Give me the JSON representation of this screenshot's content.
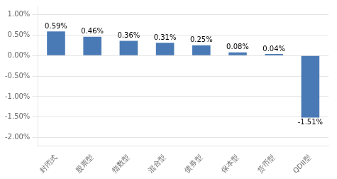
{
  "chart_data": {
    "type": "bar",
    "categories": [
      "封闭式",
      "股票型",
      "指数型",
      "混合型",
      "债券型",
      "保本型",
      "货币型",
      "QDII型"
    ],
    "values": [
      0.0059,
      0.0046,
      0.0036,
      0.0031,
      0.0025,
      0.0008,
      0.0004,
      -0.0151
    ],
    "value_labels": [
      "0.59%",
      "0.46%",
      "0.36%",
      "0.31%",
      "0.25%",
      "0.08%",
      "0.04%",
      "-1.51%"
    ],
    "color": "#4a7ab5",
    "ylim": [
      -0.022,
      0.012
    ],
    "yticks": [
      {
        "value": -0.02,
        "label": "-2.00%"
      },
      {
        "value": -0.015,
        "label": "-1.50%"
      },
      {
        "value": -0.01,
        "label": "-1.00%"
      },
      {
        "value": -0.005,
        "label": "-0.50%"
      },
      {
        "value": 0.0,
        "label": "0.00%"
      },
      {
        "value": 0.005,
        "label": "0.50%"
      },
      {
        "value": 0.01,
        "label": "1.00%"
      }
    ],
    "grid": true,
    "data_labels": true
  }
}
